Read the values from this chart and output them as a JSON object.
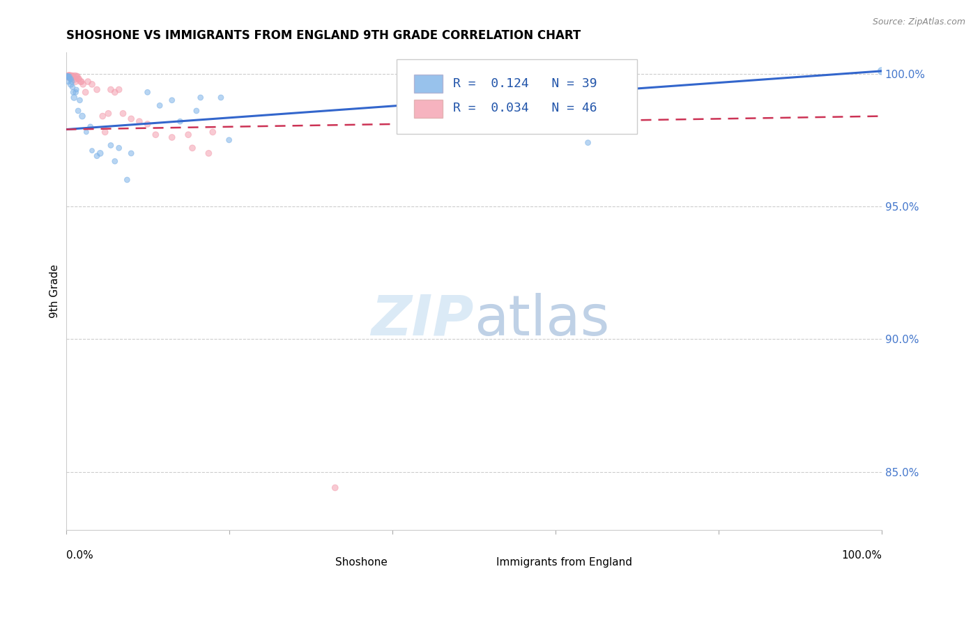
{
  "title": "SHOSHONE VS IMMIGRANTS FROM ENGLAND 9TH GRADE CORRELATION CHART",
  "source": "Source: ZipAtlas.com",
  "ylabel": "9th Grade",
  "blue_color": "#7EB3E8",
  "pink_color": "#F4A0B0",
  "blue_line_color": "#3366CC",
  "pink_line_color": "#CC3355",
  "watermark_zip": "ZIP",
  "watermark_atlas": "atlas",
  "legend_text_1": "R =  0.124   N = 39",
  "legend_text_2": "R =  0.034   N = 46",
  "legend_color": "#2255AA",
  "ylim_min": 0.828,
  "ylim_max": 1.008,
  "xlim_min": 0.0,
  "xlim_max": 1.0,
  "y_ticks": [
    0.85,
    0.9,
    0.95,
    1.0
  ],
  "y_tick_labels": [
    "85.0%",
    "90.0%",
    "95.0%",
    "100.0%"
  ],
  "blue_trend_x": [
    0.0,
    1.0
  ],
  "blue_trend_y": [
    0.979,
    1.001
  ],
  "pink_trend_x": [
    0.0,
    1.0
  ],
  "pink_trend_y": [
    0.979,
    0.984
  ],
  "shoshone_points": [
    [
      0.001,
      0.999,
      18
    ],
    [
      0.002,
      0.999,
      16
    ],
    [
      0.003,
      0.999,
      14
    ],
    [
      0.003,
      0.997,
      16
    ],
    [
      0.004,
      0.999,
      16
    ],
    [
      0.005,
      0.998,
      14
    ],
    [
      0.006,
      0.998,
      16
    ],
    [
      0.006,
      0.996,
      18
    ],
    [
      0.007,
      0.997,
      16
    ],
    [
      0.008,
      0.995,
      16
    ],
    [
      0.009,
      0.993,
      16
    ],
    [
      0.01,
      0.991,
      18
    ],
    [
      0.012,
      0.993,
      16
    ],
    [
      0.013,
      0.994,
      14
    ],
    [
      0.015,
      0.986,
      16
    ],
    [
      0.017,
      0.99,
      16
    ],
    [
      0.02,
      0.984,
      18
    ],
    [
      0.025,
      0.978,
      14
    ],
    [
      0.03,
      0.98,
      16
    ],
    [
      0.032,
      0.971,
      14
    ],
    [
      0.038,
      0.969,
      16
    ],
    [
      0.042,
      0.97,
      18
    ],
    [
      0.055,
      0.973,
      16
    ],
    [
      0.06,
      0.967,
      16
    ],
    [
      0.065,
      0.972,
      16
    ],
    [
      0.075,
      0.96,
      16
    ],
    [
      0.08,
      0.97,
      16
    ],
    [
      0.1,
      0.993,
      16
    ],
    [
      0.115,
      0.988,
      16
    ],
    [
      0.13,
      0.99,
      16
    ],
    [
      0.14,
      0.982,
      16
    ],
    [
      0.16,
      0.986,
      16
    ],
    [
      0.165,
      0.991,
      16
    ],
    [
      0.19,
      0.991,
      16
    ],
    [
      0.2,
      0.975,
      16
    ],
    [
      0.57,
      0.979,
      16
    ],
    [
      0.61,
      0.981,
      16
    ],
    [
      0.64,
      0.974,
      16
    ],
    [
      1.0,
      1.001,
      22
    ]
  ],
  "england_points": [
    [
      0.001,
      0.999,
      16
    ],
    [
      0.002,
      0.999,
      16
    ],
    [
      0.002,
      0.999,
      18
    ],
    [
      0.003,
      0.999,
      22
    ],
    [
      0.003,
      0.999,
      18
    ],
    [
      0.004,
      0.999,
      22
    ],
    [
      0.004,
      0.999,
      24
    ],
    [
      0.005,
      0.999,
      18
    ],
    [
      0.005,
      0.999,
      22
    ],
    [
      0.006,
      0.999,
      18
    ],
    [
      0.007,
      0.999,
      18
    ],
    [
      0.007,
      0.999,
      22
    ],
    [
      0.008,
      0.999,
      18
    ],
    [
      0.009,
      0.999,
      18
    ],
    [
      0.01,
      0.998,
      22
    ],
    [
      0.011,
      0.999,
      22
    ],
    [
      0.012,
      0.997,
      18
    ],
    [
      0.013,
      0.999,
      18
    ],
    [
      0.014,
      0.999,
      18
    ],
    [
      0.015,
      0.998,
      18
    ],
    [
      0.016,
      0.998,
      18
    ],
    [
      0.018,
      0.997,
      18
    ],
    [
      0.019,
      0.997,
      18
    ],
    [
      0.021,
      0.996,
      18
    ],
    [
      0.024,
      0.993,
      18
    ],
    [
      0.027,
      0.997,
      18
    ],
    [
      0.032,
      0.996,
      18
    ],
    [
      0.038,
      0.994,
      18
    ],
    [
      0.045,
      0.984,
      18
    ],
    [
      0.048,
      0.978,
      18
    ],
    [
      0.052,
      0.985,
      18
    ],
    [
      0.055,
      0.994,
      18
    ],
    [
      0.06,
      0.993,
      18
    ],
    [
      0.065,
      0.994,
      18
    ],
    [
      0.07,
      0.985,
      18
    ],
    [
      0.08,
      0.983,
      18
    ],
    [
      0.09,
      0.982,
      18
    ],
    [
      0.1,
      0.981,
      18
    ],
    [
      0.11,
      0.977,
      18
    ],
    [
      0.13,
      0.976,
      18
    ],
    [
      0.15,
      0.977,
      18
    ],
    [
      0.155,
      0.972,
      18
    ],
    [
      0.175,
      0.97,
      18
    ],
    [
      0.18,
      0.978,
      18
    ],
    [
      0.6,
      0.998,
      60
    ],
    [
      0.33,
      0.844,
      18
    ]
  ]
}
